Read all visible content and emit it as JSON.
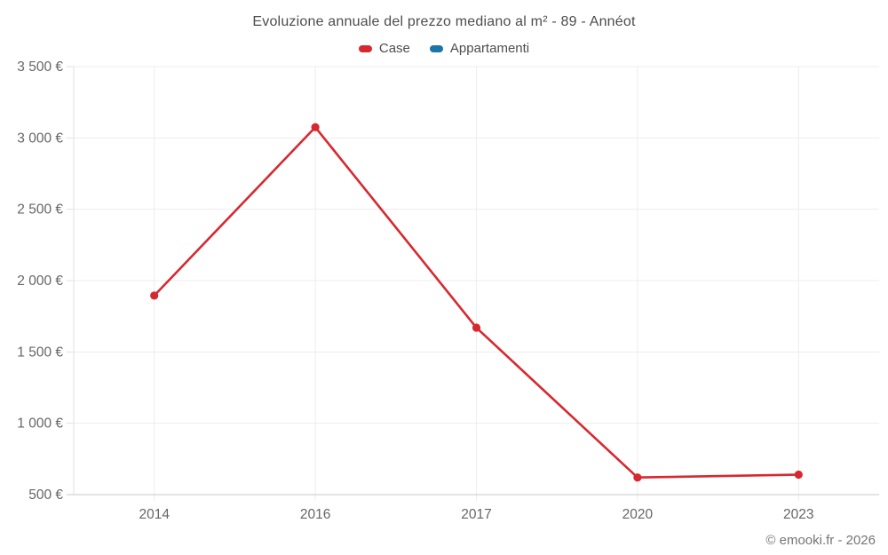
{
  "header": {
    "title": "Evoluzione annuale del prezzo mediano al m² - 89 - Annéot"
  },
  "footer": {
    "credit": "© emooki.fr - 2026"
  },
  "chart_data": {
    "type": "line",
    "title": "Evoluzione annuale del prezzo mediano al m² - 89 - Annéot",
    "categories": [
      "2014",
      "2016",
      "2017",
      "2020",
      "2023"
    ],
    "series": [
      {
        "name": "Case",
        "color": "#d7282f",
        "values": [
          1895,
          3075,
          1670,
          620,
          640
        ]
      },
      {
        "name": "Appartamenti",
        "color": "#1c74a9",
        "values": []
      }
    ],
    "xlabel": "",
    "ylabel": "",
    "ylim": [
      500,
      3500
    ],
    "y_ticks": [
      500,
      1000,
      1500,
      2000,
      2500,
      3000,
      3500
    ],
    "y_tick_labels": [
      "500 €",
      "1 000 €",
      "1 500 €",
      "2 000 €",
      "2 500 €",
      "3 000 €",
      "3 500 €"
    ],
    "grid": true,
    "legend_position": "top",
    "marker": "circle",
    "colors": {
      "grid": "#ededed",
      "axis_left": "#e2e2e2",
      "axis_bottom": "#c9c9c9",
      "tick_label": "#666666",
      "title": "#4d4d4d",
      "footer": "#757575"
    }
  }
}
